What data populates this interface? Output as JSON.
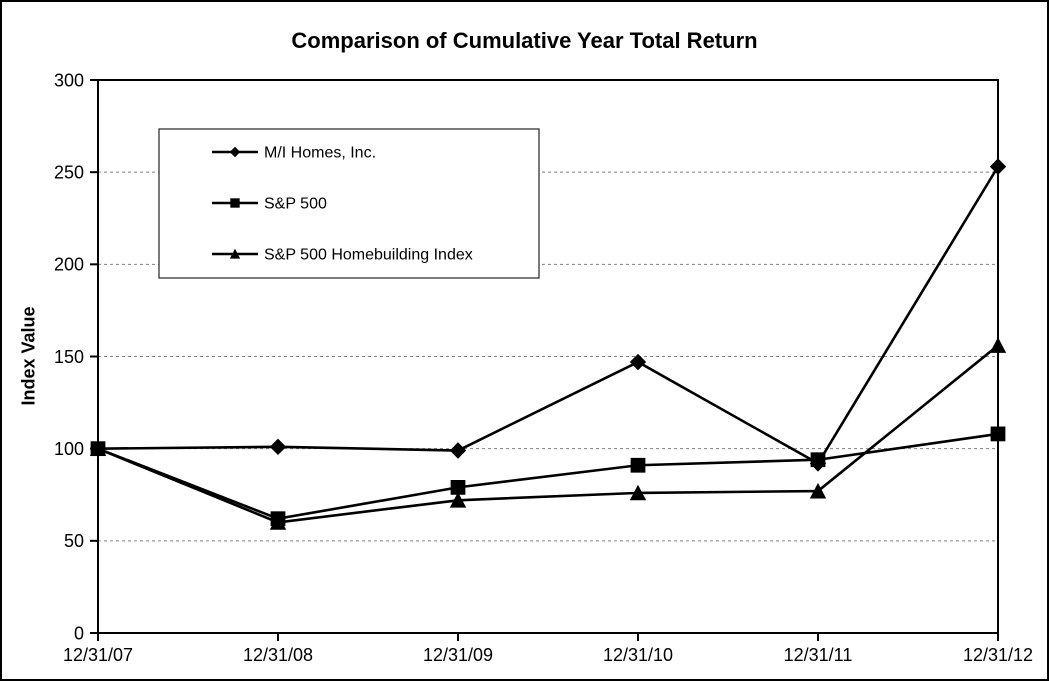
{
  "chart_data": {
    "type": "line",
    "title": "Comparison of Cumulative Year Total Return",
    "xlabel": "",
    "ylabel": "Index Value",
    "categories": [
      "12/31/07",
      "12/31/08",
      "12/31/09",
      "12/31/10",
      "12/31/11",
      "12/31/12"
    ],
    "series": [
      {
        "name": "M/I Homes, Inc.",
        "marker": "diamond",
        "color": "#000000",
        "values": [
          100,
          101,
          99,
          147,
          92,
          253
        ]
      },
      {
        "name": "S&P 500",
        "marker": "square",
        "color": "#000000",
        "values": [
          100,
          62,
          79,
          91,
          94,
          108
        ]
      },
      {
        "name": "S&P 500 Homebuilding Index",
        "marker": "triangle",
        "color": "#000000",
        "values": [
          100,
          60,
          72,
          76,
          77,
          156
        ]
      }
    ],
    "ylim": [
      0,
      300
    ],
    "ytick_step": 50,
    "yticks": [
      0,
      50,
      100,
      150,
      200,
      250,
      300
    ],
    "grid": "horizontal",
    "gridline_style": "dashed",
    "grid_color": "#808080",
    "axis_color": "#000000",
    "background_color": "#ffffff",
    "legend_position": "top-left-inside",
    "legend_border_color": "#333333"
  }
}
